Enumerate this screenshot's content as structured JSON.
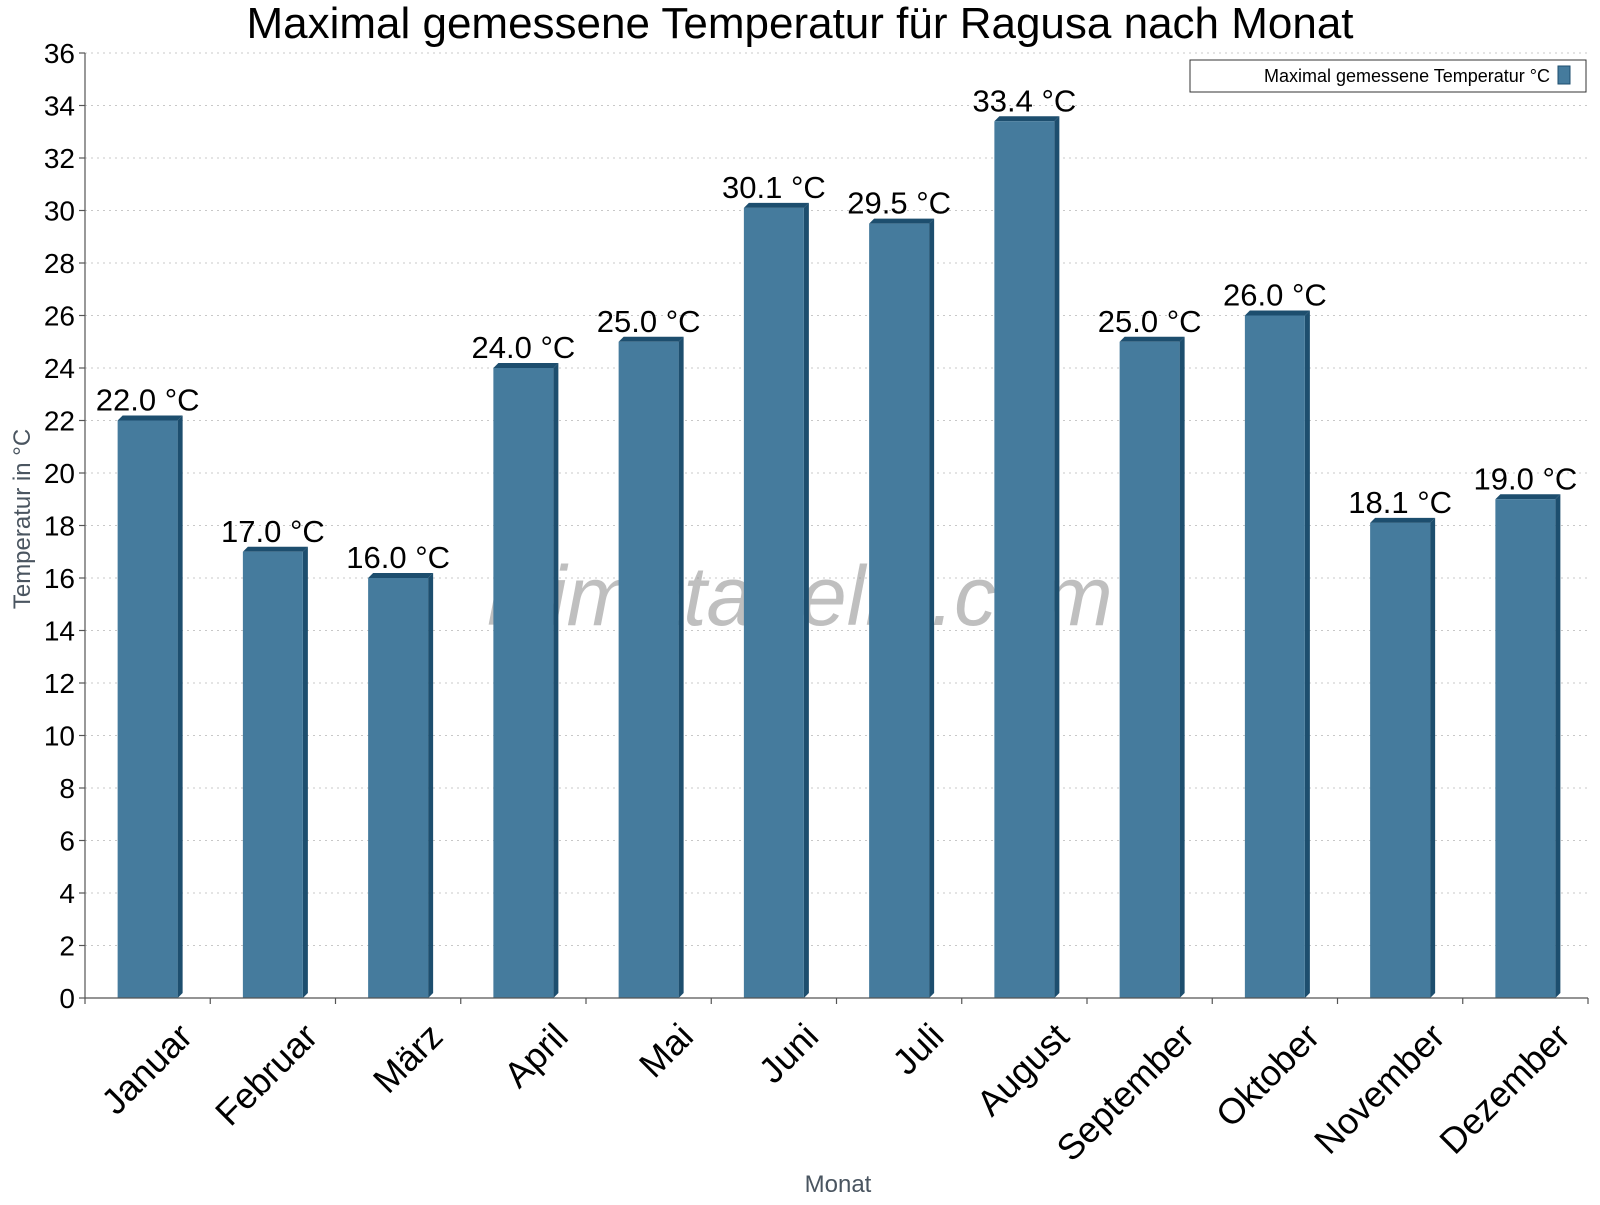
{
  "chart_data": {
    "type": "bar",
    "title": "Maximal gemessene Temperatur für Ragusa nach Monat",
    "xlabel": "Monat",
    "ylabel": "Temperatur in °C",
    "categories": [
      "Januar",
      "Februar",
      "März",
      "April",
      "Mai",
      "Juni",
      "Juli",
      "August",
      "September",
      "Oktober",
      "November",
      "Dezember"
    ],
    "series": [
      {
        "name": "Maximal gemessene Temperatur °C",
        "values": [
          22.0,
          17.0,
          16.0,
          24.0,
          25.0,
          30.1,
          29.5,
          33.4,
          25.0,
          26.0,
          18.1,
          19.0
        ],
        "labels": [
          "22.0 °C",
          "17.0 °C",
          "16.0 °C",
          "24.0 °C",
          "25.0 °C",
          "30.1 °C",
          "29.5 °C",
          "33.4 °C",
          "25.0 °C",
          "26.0 °C",
          "18.1 °C",
          "19.0 °C"
        ],
        "color": "#457b9d",
        "edge_color": "#1d4e6e"
      }
    ],
    "ylim": [
      0,
      36
    ],
    "yticks": [
      "0",
      "2",
      "4",
      "6",
      "8",
      "10",
      "12",
      "14",
      "16",
      "18",
      "20",
      "22",
      "24",
      "26",
      "28",
      "30",
      "32",
      "34",
      "36"
    ],
    "grid": true,
    "legend_position": "top-right",
    "watermark": "klimatabelle.com"
  }
}
